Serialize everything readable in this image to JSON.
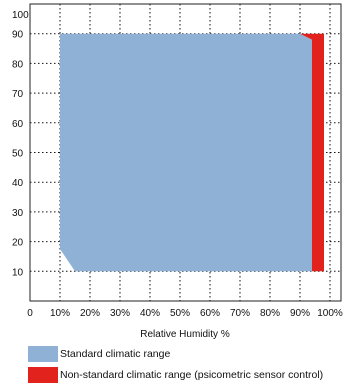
{
  "chart_data": {
    "type": "area",
    "title": "",
    "xlabel": "Relative Humidity %",
    "ylabel": "",
    "xlim": [
      0,
      100
    ],
    "ylim": [
      0,
      100
    ],
    "x_ticks": [
      "0",
      "10%",
      "20%",
      "30%",
      "40%",
      "50%",
      "60%",
      "70%",
      "80%",
      "90%",
      "100%"
    ],
    "y_ticks": [
      "10",
      "20",
      "30",
      "40",
      "50",
      "60",
      "70",
      "80",
      "90",
      "100"
    ],
    "grid": true,
    "series": [
      {
        "name": "Standard climatic range",
        "color": "#8fb1d6",
        "points": [
          [
            10,
            90
          ],
          [
            90,
            90
          ],
          [
            94,
            88
          ],
          [
            94,
            10
          ],
          [
            15,
            10
          ],
          [
            10,
            17.5
          ]
        ]
      },
      {
        "name": "Non-standard climatic range  (psicometric sensor control)",
        "color": "#e2221c",
        "points": [
          [
            90,
            90
          ],
          [
            98,
            90
          ],
          [
            98,
            10
          ],
          [
            94,
            10
          ],
          [
            94,
            88
          ]
        ]
      }
    ],
    "legend": [
      {
        "label": "Standard climatic range",
        "color": "#8fb1d6"
      },
      {
        "label": "Non-standard climatic range  (psicometric sensor control)",
        "color": "#e2221c"
      }
    ]
  }
}
